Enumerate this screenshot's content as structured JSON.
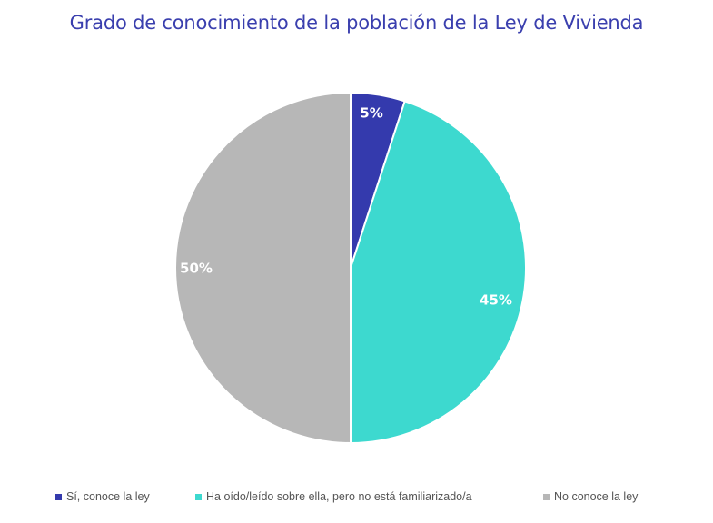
{
  "chart_data": {
    "type": "pie",
    "title": "Grado de conocimiento de la población de la Ley de Vivienda",
    "categories": [
      "Sí, conoce la ley",
      "Ha oído/leído sobre ella, pero no está familiarizado/a",
      "No conoce la ley"
    ],
    "values": [
      5,
      45,
      50
    ],
    "labels": [
      "5%",
      "45%",
      "50%"
    ],
    "colors": [
      "#343aad",
      "#3dd9cf",
      "#b7b7b7"
    ],
    "legend_position": "bottom"
  },
  "legend": [
    {
      "label": "Sí, conoce la ley",
      "color": "#343aad"
    },
    {
      "label": "Ha oído/leído sobre ella, pero no está familiarizado/a",
      "color": "#3dd9cf"
    },
    {
      "label": "No conoce la ley",
      "color": "#b7b7b7"
    }
  ]
}
